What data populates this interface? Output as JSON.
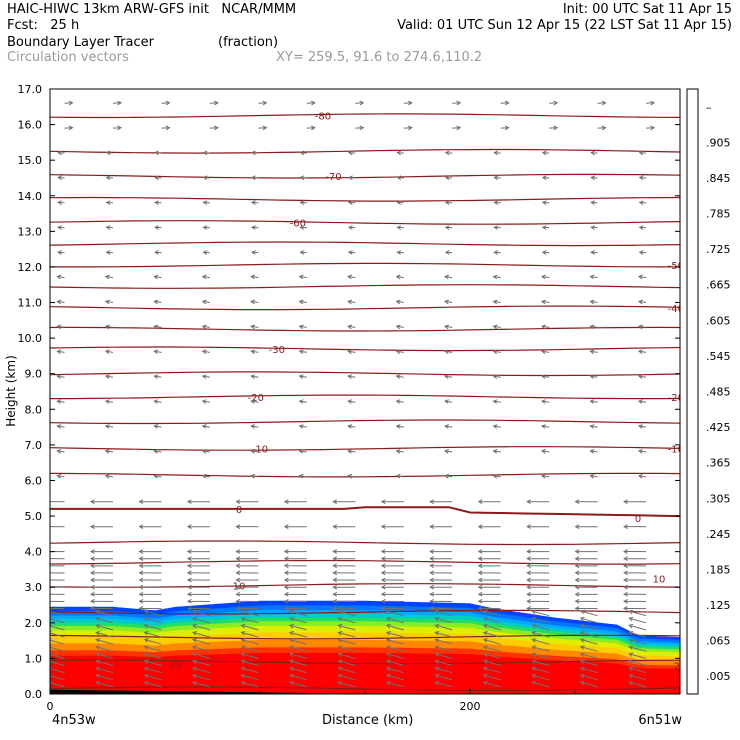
{
  "header": {
    "line1_left": "HAIC-HIWC 13km ARW-GFS init   NCAR/MMM",
    "line1_right": "Init: 00 UTC Sat 11 Apr 15",
    "line2_left": "Fcst:   25 h",
    "line2_right": "Valid: 01 UTC Sun 12 Apr 15 (22 LST Sat 11 Apr 15)",
    "line3_left": "Boundary Layer Tracer",
    "line3_units": "(fraction)",
    "line4_left": "Circulation vectors",
    "line4_right": "XY= 259.5, 91.6 to 274.6,110.2"
  },
  "chart_data": {
    "type": "heatmap",
    "xlabel": "Distance (km)",
    "ylabel": "Height (km)",
    "xlim": [
      0,
      300
    ],
    "ylim": [
      0,
      17
    ],
    "x_tick_labels": [
      "0",
      "200"
    ],
    "y_tick_labels": [
      "0.0",
      "1.0",
      "2.0",
      "3.0",
      "4.0",
      "5.0",
      "6.0",
      "7.0",
      "8.0",
      "9.0",
      "10.0",
      "11.0",
      "12.0",
      "13.0",
      "14.0",
      "15.0",
      "16.0",
      "17.0"
    ],
    "left_endpoint_label": "4n53w",
    "right_endpoint_label": "6n51w",
    "colorbar": {
      "labels": [
        ".005",
        ".065",
        ".125",
        ".185",
        ".245",
        ".305",
        ".365",
        ".425",
        ".485",
        ".545",
        ".605",
        ".665",
        ".725",
        ".785",
        ".845",
        ".905",
        "–"
      ],
      "colors": [
        "#ffffff",
        "#0055ff",
        "#0088ff",
        "#00aaff",
        "#00cccc",
        "#00dd88",
        "#22dd22",
        "#77ee22",
        "#aaee22",
        "#ddee22",
        "#ffee00",
        "#ffcc00",
        "#ffaa00",
        "#ff8800",
        "#ff5500",
        "#ff2200",
        "#ff0000"
      ]
    },
    "tracer_top_km": {
      "x": [
        0,
        30,
        50,
        60,
        100,
        150,
        200,
        210,
        240,
        270,
        280,
        300
      ],
      "y": [
        2.45,
        2.45,
        2.35,
        2.45,
        2.62,
        2.62,
        2.55,
        2.42,
        2.15,
        1.95,
        1.65,
        1.6
      ]
    },
    "temperature_contour_labels": [
      "-80",
      "-70",
      "-60",
      "-50",
      "-40",
      "-30",
      "-20",
      "-10",
      "0",
      "10",
      "20"
    ],
    "colors": {
      "contour": "#8b1a1a",
      "vector": "#707070"
    }
  }
}
